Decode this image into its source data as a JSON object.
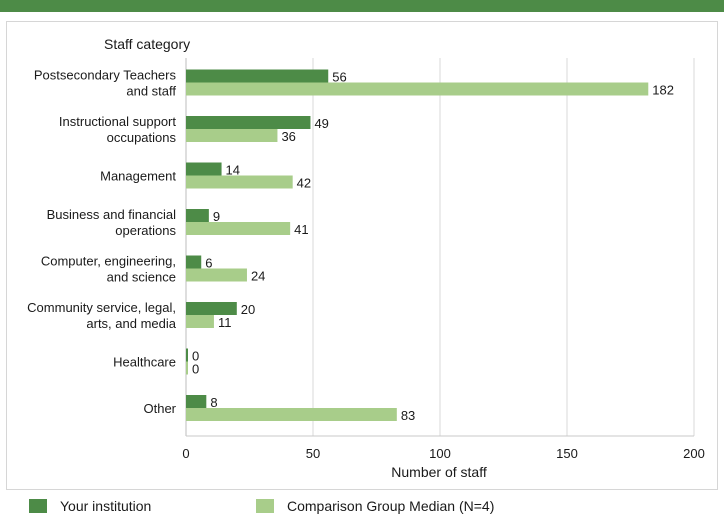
{
  "colors": {
    "header_bar": "#4d8b47",
    "your_institution": "#4d8b47",
    "comparison": "#a8cd8a",
    "grid": "#d9d9d9"
  },
  "chart_data": {
    "type": "bar",
    "orientation": "horizontal",
    "y_axis_title": "Staff category",
    "xlabel": "Number of staff",
    "xlim": [
      0,
      200
    ],
    "xticks": [
      0,
      50,
      100,
      150,
      200
    ],
    "grid": true,
    "legend_position": "bottom",
    "categories": [
      [
        "Postsecondary Teachers",
        "and staff"
      ],
      [
        "Instructional support",
        "occupations"
      ],
      [
        "Management"
      ],
      [
        "Business and financial",
        "operations"
      ],
      [
        "Computer, engineering,",
        "and science"
      ],
      [
        "Community service, legal,",
        "arts, and media"
      ],
      [
        "Healthcare"
      ],
      [
        "Other"
      ]
    ],
    "series": [
      {
        "name": "Your institution",
        "values": [
          56,
          49,
          14,
          9,
          6,
          20,
          0,
          8
        ]
      },
      {
        "name": "Comparison Group Median (N=4)",
        "values": [
          182,
          36,
          42,
          41,
          24,
          11,
          0,
          83
        ]
      }
    ]
  }
}
